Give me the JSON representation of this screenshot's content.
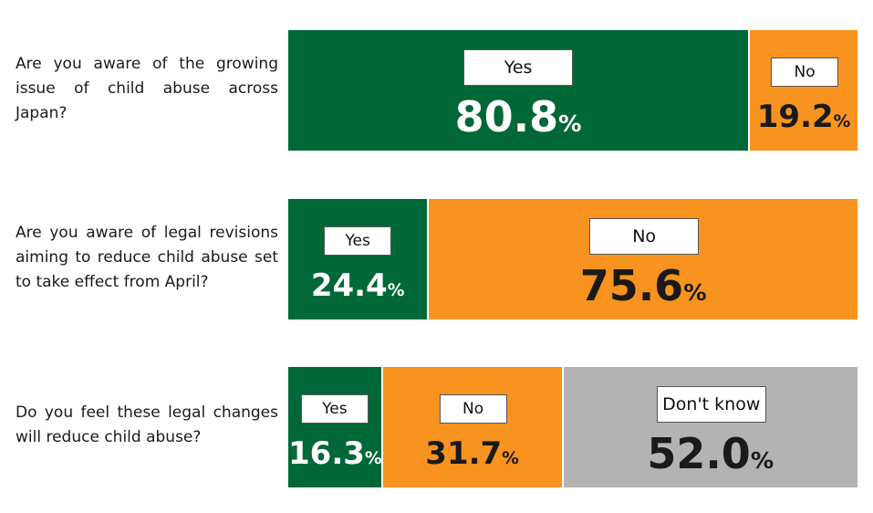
{
  "colors": {
    "yes": "#006837",
    "no": "#f7931e",
    "dont_know": "#b3b3b3",
    "value_on_dark": "#ffffff",
    "value_on_light": "#1a1a1a"
  },
  "chart_data": {
    "type": "bar",
    "orientation": "horizontal-stacked-100",
    "rows": [
      {
        "question": "Are you aware of the growing issue of child abuse across Japan?",
        "segments": [
          {
            "label": "Yes",
            "value": 80.8,
            "display": "80.8",
            "color_key": "yes"
          },
          {
            "label": "No",
            "value": 19.2,
            "display": "19.2",
            "color_key": "no"
          }
        ]
      },
      {
        "question": "Are you aware of legal revisions aiming to reduce child abuse set to take effect from April?",
        "segments": [
          {
            "label": "Yes",
            "value": 24.4,
            "display": "24.4",
            "color_key": "yes"
          },
          {
            "label": "No",
            "value": 75.6,
            "display": "75.6",
            "color_key": "no"
          }
        ]
      },
      {
        "question": "Do you feel these legal changes will reduce child abuse?",
        "segments": [
          {
            "label": "Yes",
            "value": 16.3,
            "display": "16.3",
            "color_key": "yes"
          },
          {
            "label": "No",
            "value": 31.7,
            "display": "31.7",
            "color_key": "no"
          },
          {
            "label": "Don't know",
            "value": 52.0,
            "display": "52.0",
            "color_key": "dont_know"
          }
        ]
      }
    ],
    "unit": "%"
  }
}
